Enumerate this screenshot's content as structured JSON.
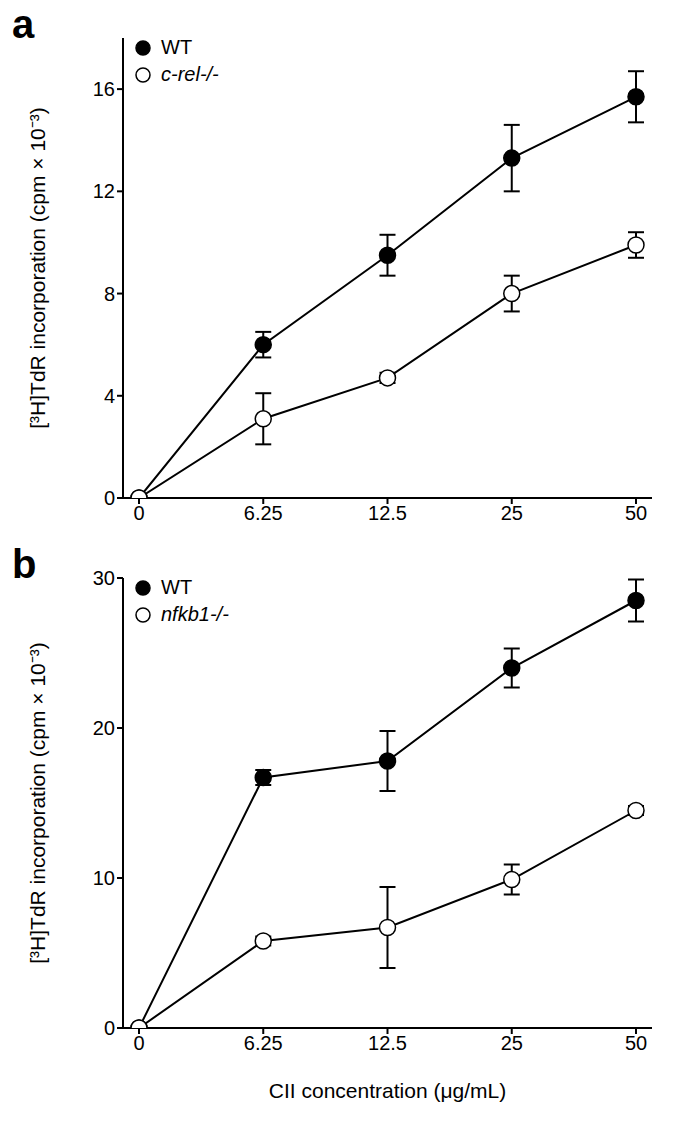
{
  "chart_data": [
    {
      "type": "line",
      "title": "a",
      "categories": [
        "0",
        "6.25",
        "12.5",
        "25",
        "50"
      ],
      "y_label": "[³H]TdR incorporation (cpm × 10⁻³)",
      "ylim": [
        0,
        18
      ],
      "yticks": [
        0,
        4,
        8,
        12,
        16
      ],
      "legend": "top-left",
      "series": [
        {
          "name": "WT",
          "color": "#000000",
          "marker": "filled",
          "values": [
            0,
            6,
            9.5,
            13.3,
            15.7
          ],
          "errors": [
            0,
            0.5,
            0.8,
            1.3,
            1.0
          ]
        },
        {
          "name": "c-rel-/-",
          "color": "#000000",
          "marker": "open",
          "values": [
            0,
            3.1,
            4.7,
            8,
            9.9
          ],
          "errors": [
            0,
            1.0,
            0.2,
            0.7,
            0.5
          ]
        }
      ]
    },
    {
      "type": "line",
      "title": "b",
      "categories": [
        "0",
        "6.25",
        "12.5",
        "25",
        "50"
      ],
      "x_label": "CII concentration (μg/mL)",
      "y_label": "[³H]TdR incorporation (cpm × 10⁻³)",
      "ylim": [
        0,
        30
      ],
      "yticks": [
        0,
        10,
        20,
        30
      ],
      "legend": "top-left",
      "series": [
        {
          "name": "WT",
          "color": "#000000",
          "marker": "filled",
          "values": [
            0,
            16.7,
            17.8,
            24,
            28.5
          ],
          "errors": [
            0,
            0.5,
            2,
            1.3,
            1.4
          ]
        },
        {
          "name": "nfkb1-/-",
          "color": "#000000",
          "marker": "open",
          "values": [
            0,
            5.8,
            6.7,
            9.9,
            14.5
          ],
          "errors": [
            0,
            0.3,
            2.7,
            1,
            0.3
          ]
        }
      ]
    }
  ]
}
